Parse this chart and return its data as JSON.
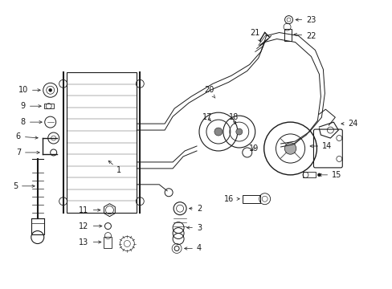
{
  "background_color": "#ffffff",
  "line_color": "#1a1a1a",
  "figure_width": 4.89,
  "figure_height": 3.6,
  "dpi": 100
}
